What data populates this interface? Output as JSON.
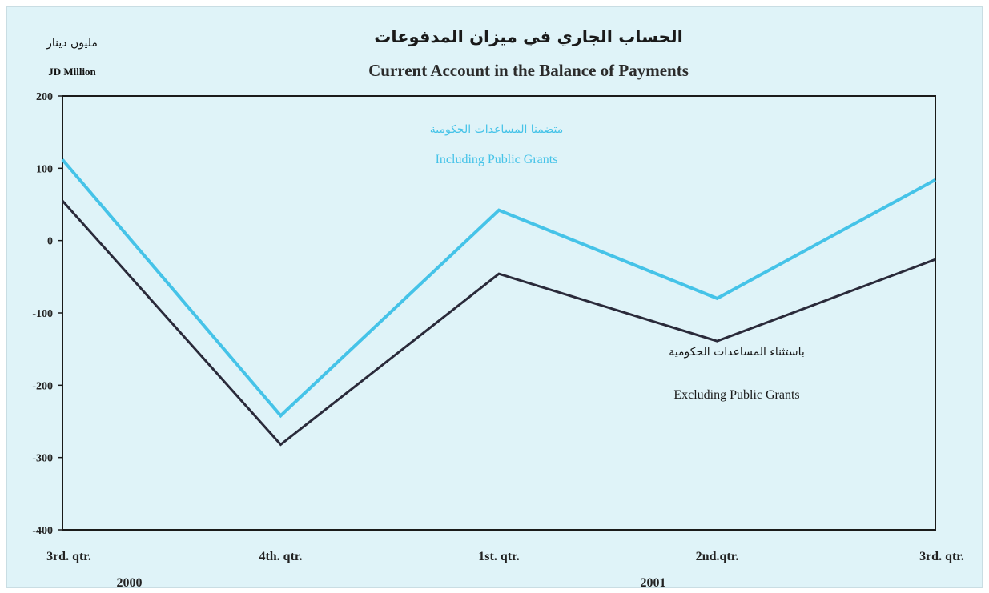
{
  "chart_data": {
    "type": "line",
    "title_ar": "الحساب الجاري في ميزان المدفوعات",
    "title": "Current Account in the Balance of Payments",
    "unit_ar": "مليون دينار",
    "ylabel": "JD Million",
    "categories": [
      "3rd. qtr.",
      "4th. qtr.",
      "1st. qtr.",
      "2nd.qtr.",
      "3rd. qtr."
    ],
    "years": [
      {
        "label": "2000",
        "under_index": 0.6
      },
      {
        "label": "2001",
        "under_index": 3.0
      }
    ],
    "ylim": [
      -400,
      200
    ],
    "yticks": [
      200,
      100,
      0,
      -100,
      -200,
      -300,
      -400
    ],
    "grid": false,
    "series": [
      {
        "name": "Including Public Grants",
        "name_ar": "متضمنا المساعدات الحكومية",
        "color": "#45c3e8",
        "values": [
          112,
          -242,
          42,
          -80,
          84
        ]
      },
      {
        "name": "Excluding Public Grants",
        "name_ar": "باستثناء المساعدات الحكومية",
        "color": "#2a2a3a",
        "values": [
          55,
          -282,
          -46,
          -139,
          -26
        ]
      }
    ]
  }
}
